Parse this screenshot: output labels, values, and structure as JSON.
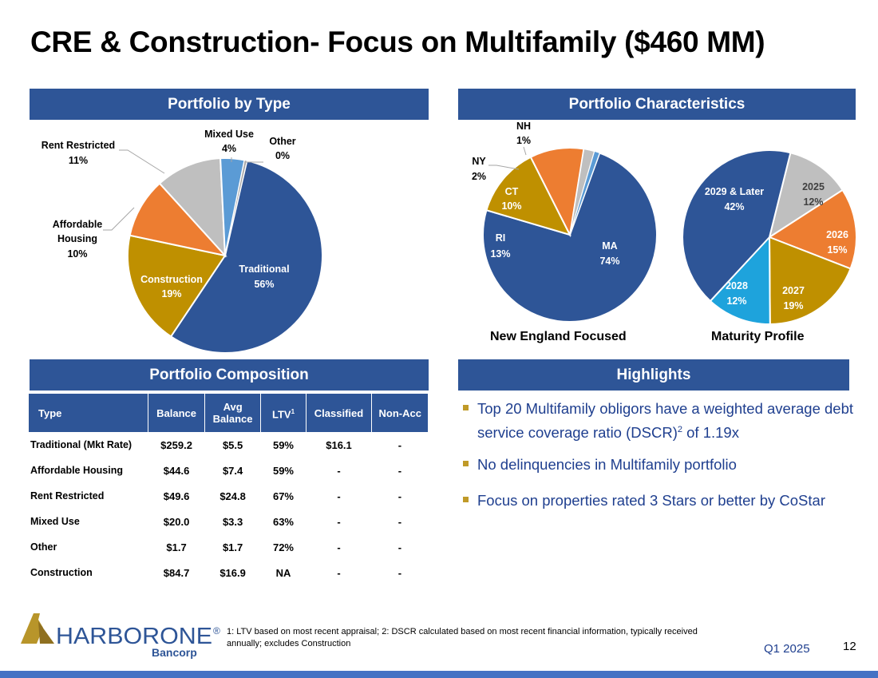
{
  "title": "CRE & Construction- Focus on Multifamily ($460 MM)",
  "colors": {
    "banner": "#2e5597",
    "traditional": "#2e5597",
    "construction": "#bf9000",
    "affordable": "#ed7d31",
    "rent_restricted": "#bfbfbf",
    "mixed_use": "#5b9bd5",
    "other": "#a5a5a5",
    "bullet": "#c09a28",
    "highlight_text": "#1f3f8f"
  },
  "sections": {
    "portfolio_by_type": "Portfolio by Type",
    "portfolio_characteristics": "Portfolio Characteristics",
    "portfolio_composition": "Portfolio Composition",
    "highlights": "Highlights"
  },
  "chart_data": [
    {
      "type": "pie",
      "title": "Portfolio by Type",
      "slices": [
        {
          "label": "Traditional",
          "value": 56,
          "text": "56%"
        },
        {
          "label": "Construction",
          "value": 19,
          "text": "19%"
        },
        {
          "label": "Affordable Housing",
          "value": 10,
          "text": "10%"
        },
        {
          "label": "Rent Restricted",
          "value": 11,
          "text": "11%"
        },
        {
          "label": "Mixed Use",
          "value": 4,
          "text": "4%"
        },
        {
          "label": "Other",
          "value": 0.4,
          "text": "0%"
        }
      ]
    },
    {
      "type": "pie",
      "title": "New England Focused",
      "slices": [
        {
          "label": "MA",
          "value": 74,
          "text": "74%"
        },
        {
          "label": "RI",
          "value": 13,
          "text": "13%"
        },
        {
          "label": "CT",
          "value": 10,
          "text": "10%"
        },
        {
          "label": "NY",
          "value": 2,
          "text": "2%"
        },
        {
          "label": "NH",
          "value": 1,
          "text": "1%"
        }
      ]
    },
    {
      "type": "pie",
      "title": "Maturity Profile",
      "slices": [
        {
          "label": "2025",
          "value": 12,
          "text": "12%"
        },
        {
          "label": "2026",
          "value": 15,
          "text": "15%"
        },
        {
          "label": "2027",
          "value": 19,
          "text": "19%"
        },
        {
          "label": "2028",
          "value": 12,
          "text": "12%"
        },
        {
          "label": "2029 & Later",
          "value": 42,
          "text": "42%"
        }
      ]
    }
  ],
  "composition": {
    "headers": {
      "type": "Type",
      "balance": "Balance",
      "avg_line1": "Avg",
      "avg_line2": "Balance",
      "ltv": "LTV",
      "ltv_sup": "1",
      "classified": "Classified",
      "nonacc": "Non-Acc"
    },
    "rows": [
      {
        "type": "Traditional (Mkt Rate)",
        "balance": "$259.2",
        "avg": "$5.5",
        "ltv": "59%",
        "classified": "$16.1",
        "nonacc": "-"
      },
      {
        "type": "Affordable Housing",
        "balance": "$44.6",
        "avg": "$7.4",
        "ltv": "59%",
        "classified": "-",
        "nonacc": "-"
      },
      {
        "type": "Rent Restricted",
        "balance": "$49.6",
        "avg": "$24.8",
        "ltv": "67%",
        "classified": "-",
        "nonacc": "-"
      },
      {
        "type": "Mixed Use",
        "balance": "$20.0",
        "avg": "$3.3",
        "ltv": "63%",
        "classified": "-",
        "nonacc": "-"
      },
      {
        "type": "Other",
        "balance": "$1.7",
        "avg": "$1.7",
        "ltv": "72%",
        "classified": "-",
        "nonacc": "-"
      },
      {
        "type": "Construction",
        "balance": "$84.7",
        "avg": "$16.9",
        "ltv": "NA",
        "classified": "-",
        "nonacc": "-"
      }
    ]
  },
  "highlights": {
    "h1_a": "Top 20 Multifamily obligors have a weighted average debt service coverage ratio (DSCR)",
    "h1_sup": "2",
    "h1_b": " of 1.19x",
    "h2": "No delinquencies in Multifamily portfolio",
    "h3": "Focus on properties rated 3 Stars or better by CoStar"
  },
  "footer": {
    "logo_name": "HARBORONE",
    "logo_reg": "®",
    "logo_sub": "Bancorp",
    "footnote": "1: LTV based on most recent appraisal; 2: DSCR calculated based on most recent financial information, typically received annually; excludes Construction",
    "quarter": "Q1 2025",
    "page": "12"
  }
}
